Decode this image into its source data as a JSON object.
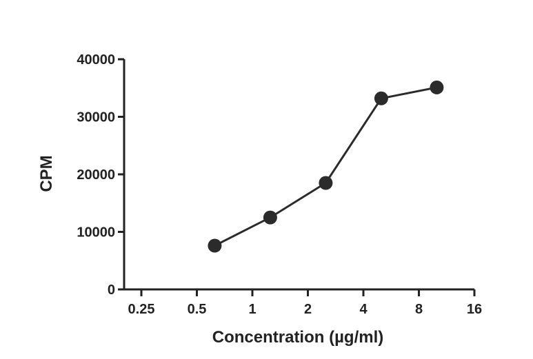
{
  "chart_data": {
    "type": "line",
    "title": "",
    "xlabel": "Concentration (µg/ml)",
    "ylabel": "CPM",
    "x_scale": "log2",
    "xlim": [
      0.2,
      16
    ],
    "ylim": [
      0,
      40000
    ],
    "x_ticks": [
      0.25,
      0.5,
      1,
      2,
      4,
      8,
      16
    ],
    "x_tick_labels": [
      "0.25",
      "0.5",
      "1",
      "2",
      "4",
      "8",
      "16"
    ],
    "y_ticks": [
      0,
      10000,
      20000,
      30000,
      40000
    ],
    "y_tick_labels": [
      "0",
      "10000",
      "20000",
      "30000",
      "40000"
    ],
    "grid": false,
    "legend": "none",
    "series": [
      {
        "name": "CPM",
        "color": "#2b2b2b",
        "marker": "circle",
        "points": [
          {
            "x": 0.625,
            "y": 7600
          },
          {
            "x": 1.25,
            "y": 12500
          },
          {
            "x": 2.5,
            "y": 18500
          },
          {
            "x": 5,
            "y": 33200
          },
          {
            "x": 10,
            "y": 35100
          }
        ]
      }
    ]
  }
}
